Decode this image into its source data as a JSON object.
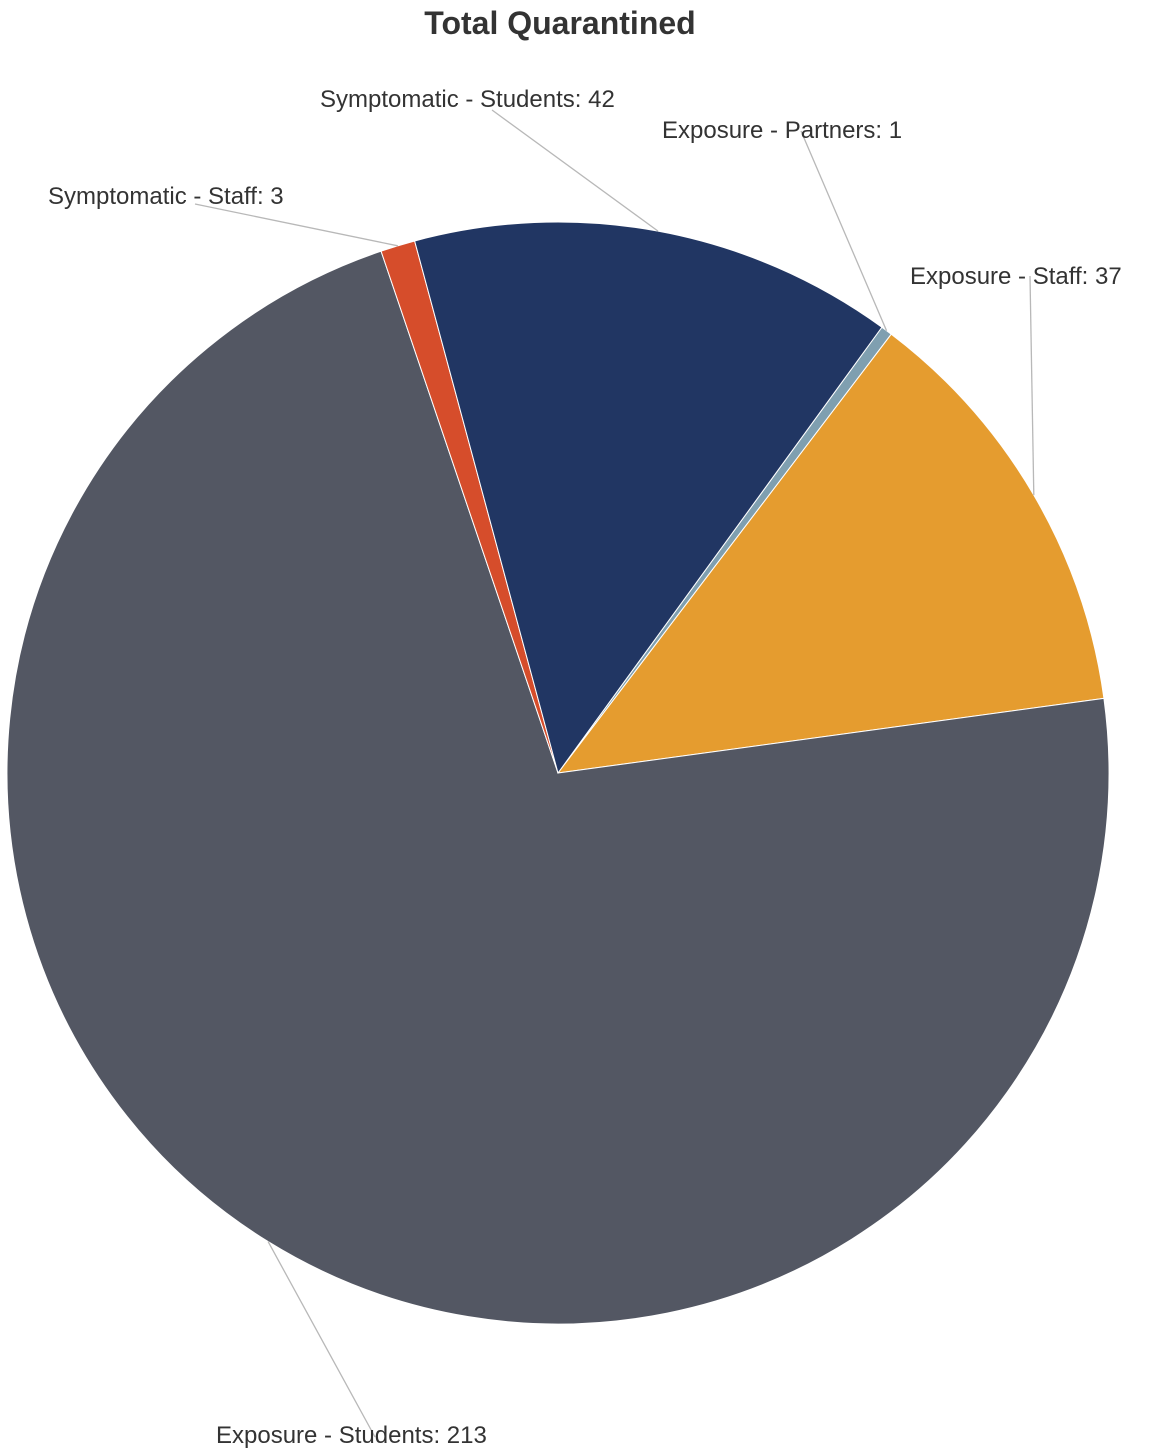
{
  "chart_data": {
    "type": "pie",
    "title": "Total Quarantined",
    "slices": [
      {
        "label": "Exposure - Partners",
        "value": 1,
        "color": "#7f9fb0"
      },
      {
        "label": "Exposure - Staff",
        "value": 37,
        "color": "#e59c2f"
      },
      {
        "label": "Exposure - Students",
        "value": 213,
        "color": "#535763"
      },
      {
        "label": "Symptomatic - Staff",
        "value": 3,
        "color": "#d64d2b"
      },
      {
        "label": "Symptomatic - Students",
        "value": 42,
        "color": "#213663"
      }
    ],
    "label_format": "{label}: {value}"
  }
}
